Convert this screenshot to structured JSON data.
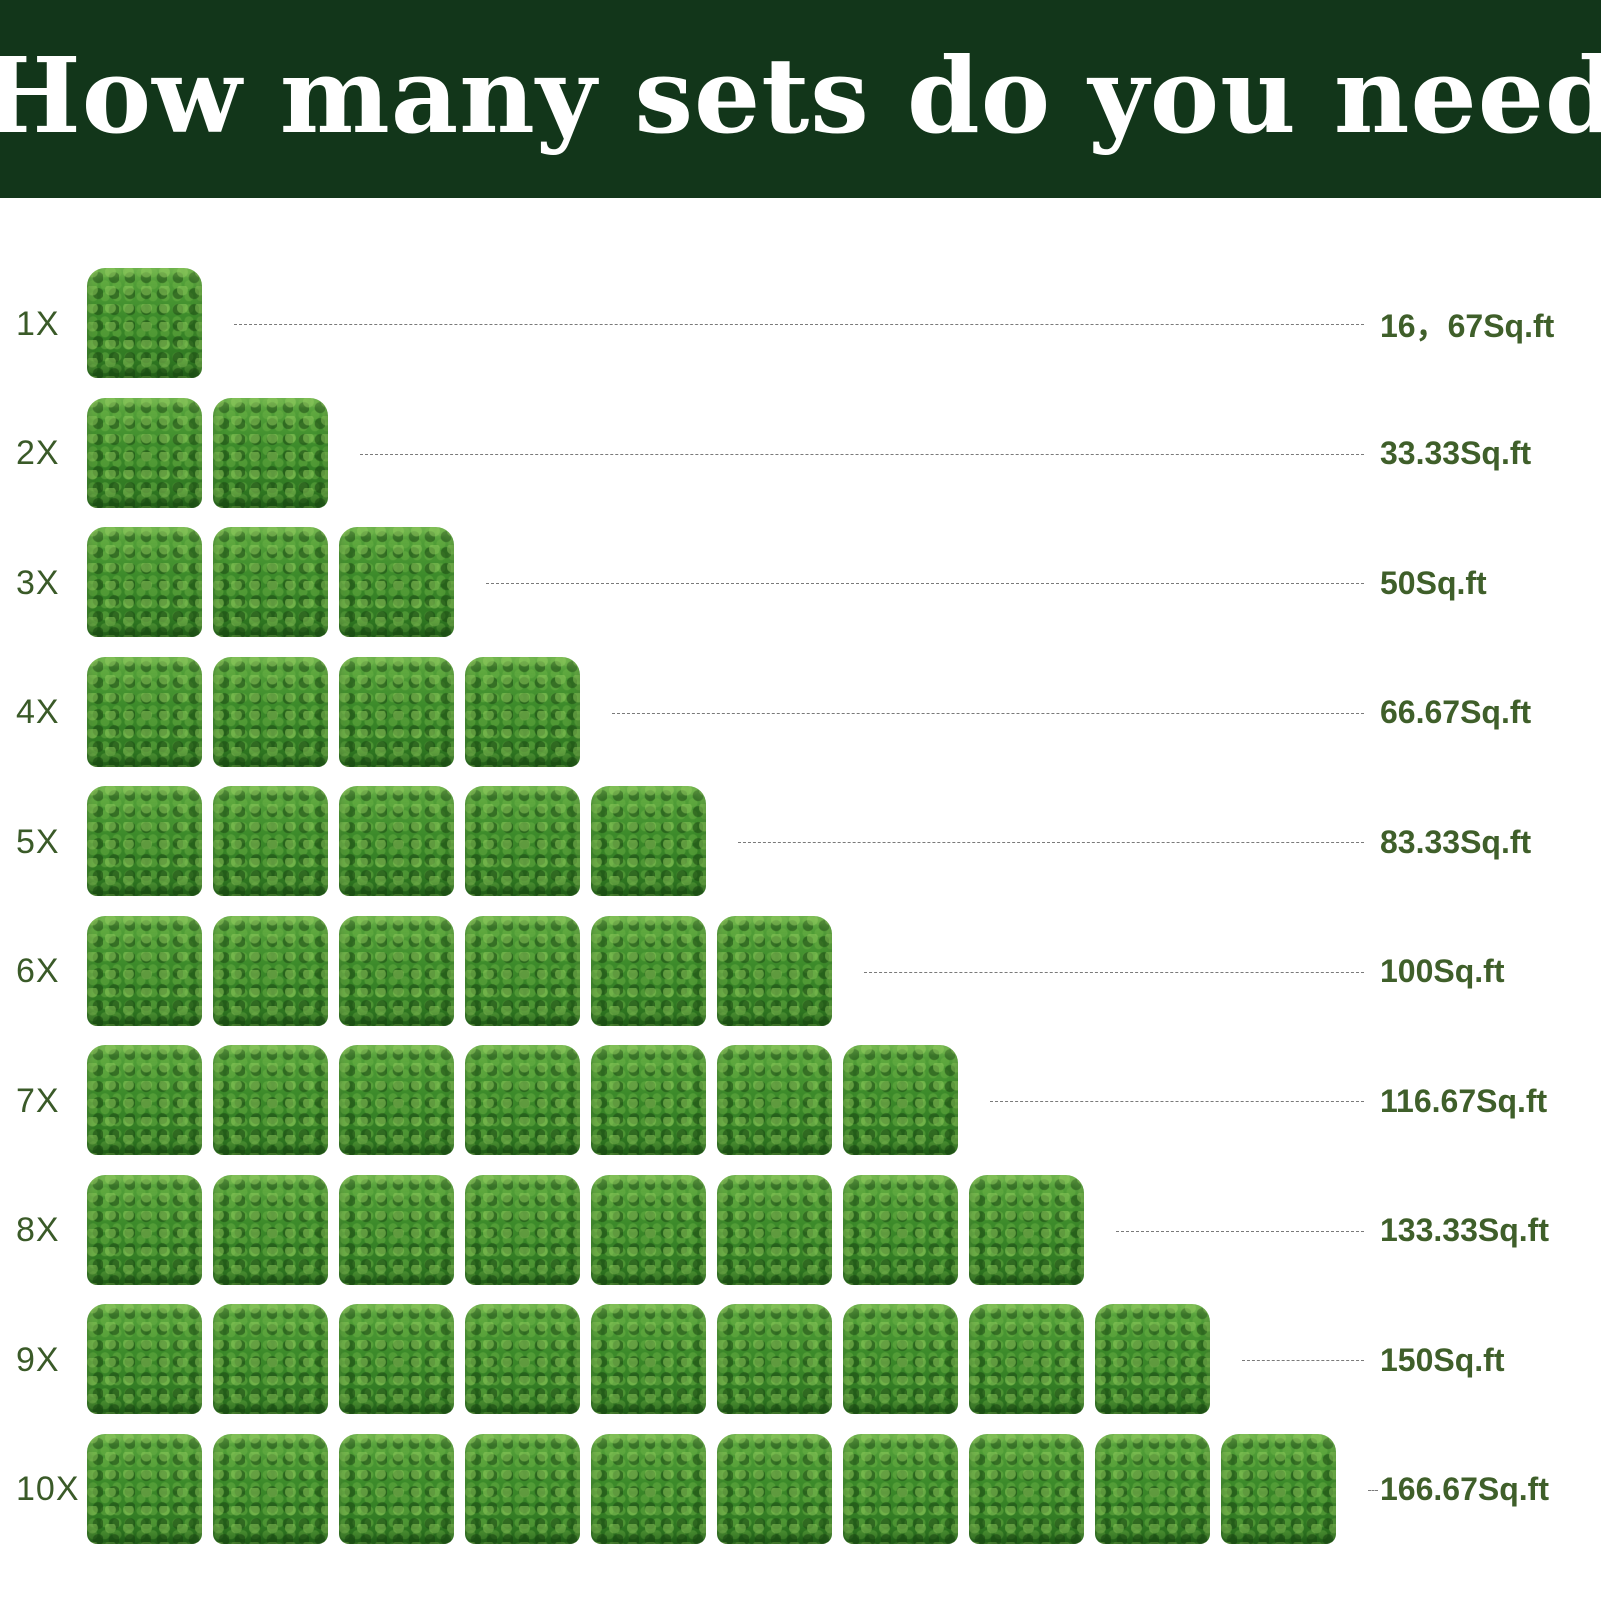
{
  "header": {
    "title": "How many sets do you need"
  },
  "rows": [
    {
      "label": "1X",
      "count": 1,
      "area": "16，67Sq.ft"
    },
    {
      "label": "2X",
      "count": 2,
      "area": "33.33Sq.ft"
    },
    {
      "label": "3X",
      "count": 3,
      "area": "50Sq.ft"
    },
    {
      "label": "4X",
      "count": 4,
      "area": "66.67Sq.ft"
    },
    {
      "label": "5X",
      "count": 5,
      "area": "83.33Sq.ft"
    },
    {
      "label": "6X",
      "count": 6,
      "area": "100Sq.ft"
    },
    {
      "label": "7X",
      "count": 7,
      "area": "116.67Sq.ft"
    },
    {
      "label": "8X",
      "count": 8,
      "area": "133.33Sq.ft"
    },
    {
      "label": "9X",
      "count": 9,
      "area": "150Sq.ft"
    },
    {
      "label": "10X",
      "count": 10,
      "area": "166.67Sq.ft"
    }
  ],
  "colors": {
    "header_bg": "#12361a",
    "label_text": "#3a5a28",
    "area_text": "#3f5f2a",
    "tile_green": "#3f8d2c"
  }
}
